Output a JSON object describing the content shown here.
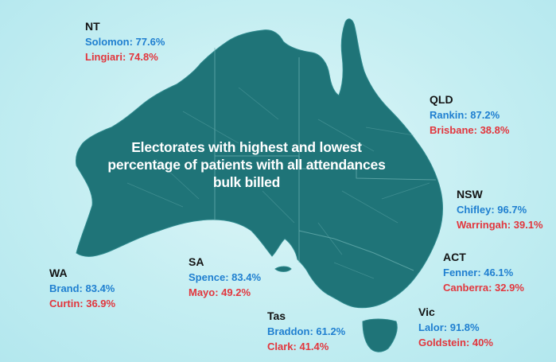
{
  "headline": "Electorates with highest and lowest percentage of patients with all attendances bulk billed",
  "colors": {
    "highest": "#1f7fd0",
    "lowest": "#e2363d",
    "land": "#1f7478",
    "sea": "#c4eef2"
  },
  "states": {
    "nt": {
      "name": "NT",
      "highest": "Solomon: 77.6%",
      "lowest": "Lingiari: 74.8%"
    },
    "qld": {
      "name": "QLD",
      "highest": "Rankin: 87.2%",
      "lowest": "Brisbane: 38.8%"
    },
    "nsw": {
      "name": "NSW",
      "highest": "Chifley: 96.7%",
      "lowest": "Warringah: 39.1%"
    },
    "act": {
      "name": "ACT",
      "highest": "Fenner: 46.1%",
      "lowest": "Canberra: 32.9%"
    },
    "vic": {
      "name": "Vic",
      "highest": "Lalor: 91.8%",
      "lowest": "Goldstein: 40%"
    },
    "tas": {
      "name": "Tas",
      "highest": "Braddon: 61.2%",
      "lowest": "Clark: 41.4%"
    },
    "sa": {
      "name": "SA",
      "highest": "Spence: 83.4%",
      "lowest": "Mayo: 49.2%"
    },
    "wa": {
      "name": "WA",
      "highest": "Brand: 83.4%",
      "lowest": "Curtin: 36.9%"
    }
  }
}
